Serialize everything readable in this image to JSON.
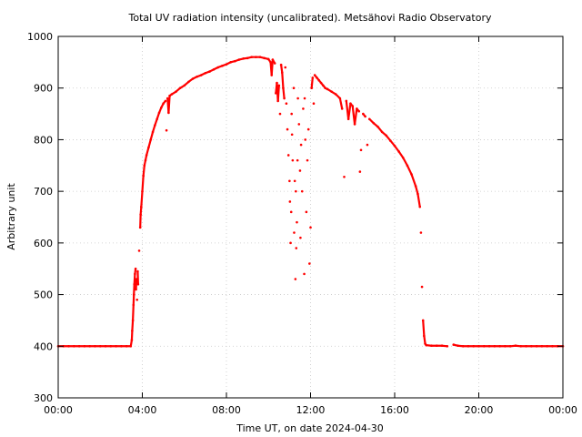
{
  "chart_data": {
    "type": "scatter",
    "title": "Total UV radiation intensity (uncalibrated). Metsähovi Radio Observatory",
    "xlabel": "Time UT, on date 2024-04-30",
    "ylabel": "Arbitrary unit",
    "xlim": [
      0,
      24
    ],
    "ylim": [
      300,
      1000
    ],
    "x_ticks": [
      {
        "value": 0,
        "label": "00:00"
      },
      {
        "value": 4,
        "label": "04:00"
      },
      {
        "value": 8,
        "label": "08:00"
      },
      {
        "value": 12,
        "label": "12:00"
      },
      {
        "value": 16,
        "label": "16:00"
      },
      {
        "value": 20,
        "label": "20:00"
      },
      {
        "value": 24,
        "label": "00:00"
      }
    ],
    "y_ticks": [
      {
        "value": 300,
        "label": "300"
      },
      {
        "value": 400,
        "label": "400"
      },
      {
        "value": 500,
        "label": "500"
      },
      {
        "value": 600,
        "label": "600"
      },
      {
        "value": 700,
        "label": "700"
      },
      {
        "value": 800,
        "label": "800"
      },
      {
        "value": 900,
        "label": "900"
      },
      {
        "value": 1000,
        "label": "1000"
      }
    ],
    "grid": true,
    "legend": "none",
    "series": [
      {
        "color": "#ff0000",
        "points": [
          [
            0.0,
            400
          ],
          [
            0.25,
            400
          ],
          [
            0.5,
            400
          ],
          [
            0.75,
            400
          ],
          [
            1.0,
            400
          ],
          [
            1.25,
            400
          ],
          [
            1.5,
            400
          ],
          [
            1.75,
            400
          ],
          [
            2.0,
            400
          ],
          [
            2.25,
            400
          ],
          [
            2.5,
            400
          ],
          [
            2.75,
            400
          ],
          [
            3.0,
            400
          ],
          [
            3.25,
            400
          ],
          [
            3.45,
            400
          ],
          [
            3.5,
            412
          ],
          [
            3.52,
            430
          ],
          [
            3.55,
            450
          ],
          [
            3.58,
            480
          ],
          [
            3.6,
            500
          ],
          [
            3.62,
            520
          ],
          [
            3.65,
            540
          ],
          [
            3.68,
            550
          ],
          [
            3.7,
            510
          ],
          [
            3.72,
            530
          ],
          [
            3.75,
            490
          ],
          [
            3.78,
            545
          ],
          [
            3.8,
            520
          ],
          [
            3.85,
            585
          ],
          [
            3.9,
            630
          ],
          [
            3.92,
            655
          ],
          [
            3.95,
            670
          ],
          [
            4.0,
            700
          ],
          [
            4.05,
            730
          ],
          [
            4.1,
            750
          ],
          [
            4.15,
            760
          ],
          [
            4.2,
            770
          ],
          [
            4.3,
            785
          ],
          [
            4.4,
            800
          ],
          [
            4.5,
            815
          ],
          [
            4.6,
            828
          ],
          [
            4.7,
            840
          ],
          [
            4.8,
            852
          ],
          [
            4.9,
            862
          ],
          [
            5.0,
            870
          ],
          [
            5.1,
            875
          ],
          [
            5.15,
            818
          ],
          [
            5.2,
            880
          ],
          [
            5.25,
            852
          ],
          [
            5.3,
            885
          ],
          [
            5.4,
            888
          ],
          [
            5.6,
            893
          ],
          [
            5.8,
            900
          ],
          [
            6.0,
            905
          ],
          [
            6.2,
            912
          ],
          [
            6.4,
            918
          ],
          [
            6.6,
            922
          ],
          [
            6.8,
            925
          ],
          [
            7.0,
            929
          ],
          [
            7.2,
            932
          ],
          [
            7.4,
            936
          ],
          [
            7.6,
            940
          ],
          [
            7.8,
            943
          ],
          [
            8.0,
            946
          ],
          [
            8.2,
            950
          ],
          [
            8.4,
            952
          ],
          [
            8.6,
            955
          ],
          [
            8.8,
            957
          ],
          [
            9.0,
            958
          ],
          [
            9.2,
            960
          ],
          [
            9.4,
            960
          ],
          [
            9.6,
            960
          ],
          [
            9.8,
            958
          ],
          [
            10.0,
            956
          ],
          [
            10.1,
            950
          ],
          [
            10.15,
            925
          ],
          [
            10.2,
            955
          ],
          [
            10.3,
            948
          ],
          [
            10.35,
            890
          ],
          [
            10.4,
            910
          ],
          [
            10.45,
            875
          ],
          [
            10.5,
            905
          ],
          [
            10.55,
            850
          ],
          [
            10.6,
            945
          ],
          [
            10.65,
            930
          ],
          [
            10.7,
            900
          ],
          [
            10.75,
            880
          ],
          [
            10.8,
            940
          ],
          [
            10.85,
            870
          ],
          [
            10.9,
            820
          ],
          [
            10.95,
            770
          ],
          [
            11.0,
            720
          ],
          [
            11.02,
            680
          ],
          [
            11.05,
            600
          ],
          [
            11.08,
            660
          ],
          [
            11.1,
            850
          ],
          [
            11.12,
            810
          ],
          [
            11.15,
            760
          ],
          [
            11.2,
            900
          ],
          [
            11.22,
            620
          ],
          [
            11.25,
            720
          ],
          [
            11.28,
            530
          ],
          [
            11.3,
            700
          ],
          [
            11.32,
            590
          ],
          [
            11.35,
            640
          ],
          [
            11.38,
            760
          ],
          [
            11.4,
            880
          ],
          [
            11.45,
            830
          ],
          [
            11.5,
            740
          ],
          [
            11.52,
            610
          ],
          [
            11.55,
            790
          ],
          [
            11.6,
            700
          ],
          [
            11.65,
            860
          ],
          [
            11.7,
            540
          ],
          [
            11.72,
            880
          ],
          [
            11.75,
            800
          ],
          [
            11.8,
            660
          ],
          [
            11.85,
            760
          ],
          [
            11.9,
            820
          ],
          [
            11.95,
            560
          ],
          [
            12.0,
            630
          ],
          [
            12.05,
            900
          ],
          [
            12.1,
            920
          ],
          [
            12.15,
            870
          ],
          [
            12.2,
            925
          ],
          [
            12.3,
            920
          ],
          [
            12.4,
            915
          ],
          [
            12.5,
            910
          ],
          [
            12.6,
            905
          ],
          [
            12.7,
            900
          ],
          [
            12.8,
            898
          ],
          [
            13.0,
            893
          ],
          [
            13.2,
            888
          ],
          [
            13.4,
            880
          ],
          [
            13.5,
            860
          ],
          [
            13.6,
            728
          ],
          [
            13.7,
            875
          ],
          [
            13.8,
            840
          ],
          [
            13.9,
            870
          ],
          [
            14.0,
            865
          ],
          [
            14.1,
            830
          ],
          [
            14.2,
            860
          ],
          [
            14.3,
            855
          ],
          [
            14.35,
            738
          ],
          [
            14.4,
            780
          ],
          [
            14.5,
            850
          ],
          [
            14.6,
            845
          ],
          [
            14.7,
            790
          ],
          [
            14.8,
            840
          ],
          [
            15.0,
            832
          ],
          [
            15.2,
            825
          ],
          [
            15.4,
            815
          ],
          [
            15.6,
            808
          ],
          [
            15.8,
            798
          ],
          [
            16.0,
            788
          ],
          [
            16.2,
            777
          ],
          [
            16.4,
            765
          ],
          [
            16.6,
            750
          ],
          [
            16.8,
            733
          ],
          [
            17.0,
            710
          ],
          [
            17.1,
            695
          ],
          [
            17.2,
            670
          ],
          [
            17.25,
            620
          ],
          [
            17.3,
            515
          ],
          [
            17.35,
            450
          ],
          [
            17.4,
            420
          ],
          [
            17.45,
            405
          ],
          [
            17.5,
            402
          ],
          [
            17.75,
            401
          ],
          [
            18.0,
            401
          ],
          [
            18.25,
            401
          ],
          [
            18.5,
            400
          ],
          [
            18.8,
            403
          ],
          [
            19.0,
            401
          ],
          [
            19.25,
            400
          ],
          [
            19.5,
            400
          ],
          [
            19.75,
            400
          ],
          [
            20.0,
            400
          ],
          [
            20.25,
            400
          ],
          [
            20.5,
            400
          ],
          [
            20.75,
            400
          ],
          [
            21.0,
            400
          ],
          [
            21.25,
            400
          ],
          [
            21.5,
            400
          ],
          [
            21.75,
            401
          ],
          [
            22.0,
            400
          ],
          [
            22.25,
            400
          ],
          [
            22.5,
            400
          ],
          [
            22.75,
            400
          ],
          [
            23.0,
            400
          ],
          [
            23.25,
            400
          ],
          [
            23.5,
            400
          ],
          [
            23.75,
            400
          ],
          [
            24.0,
            400
          ]
        ]
      }
    ]
  }
}
